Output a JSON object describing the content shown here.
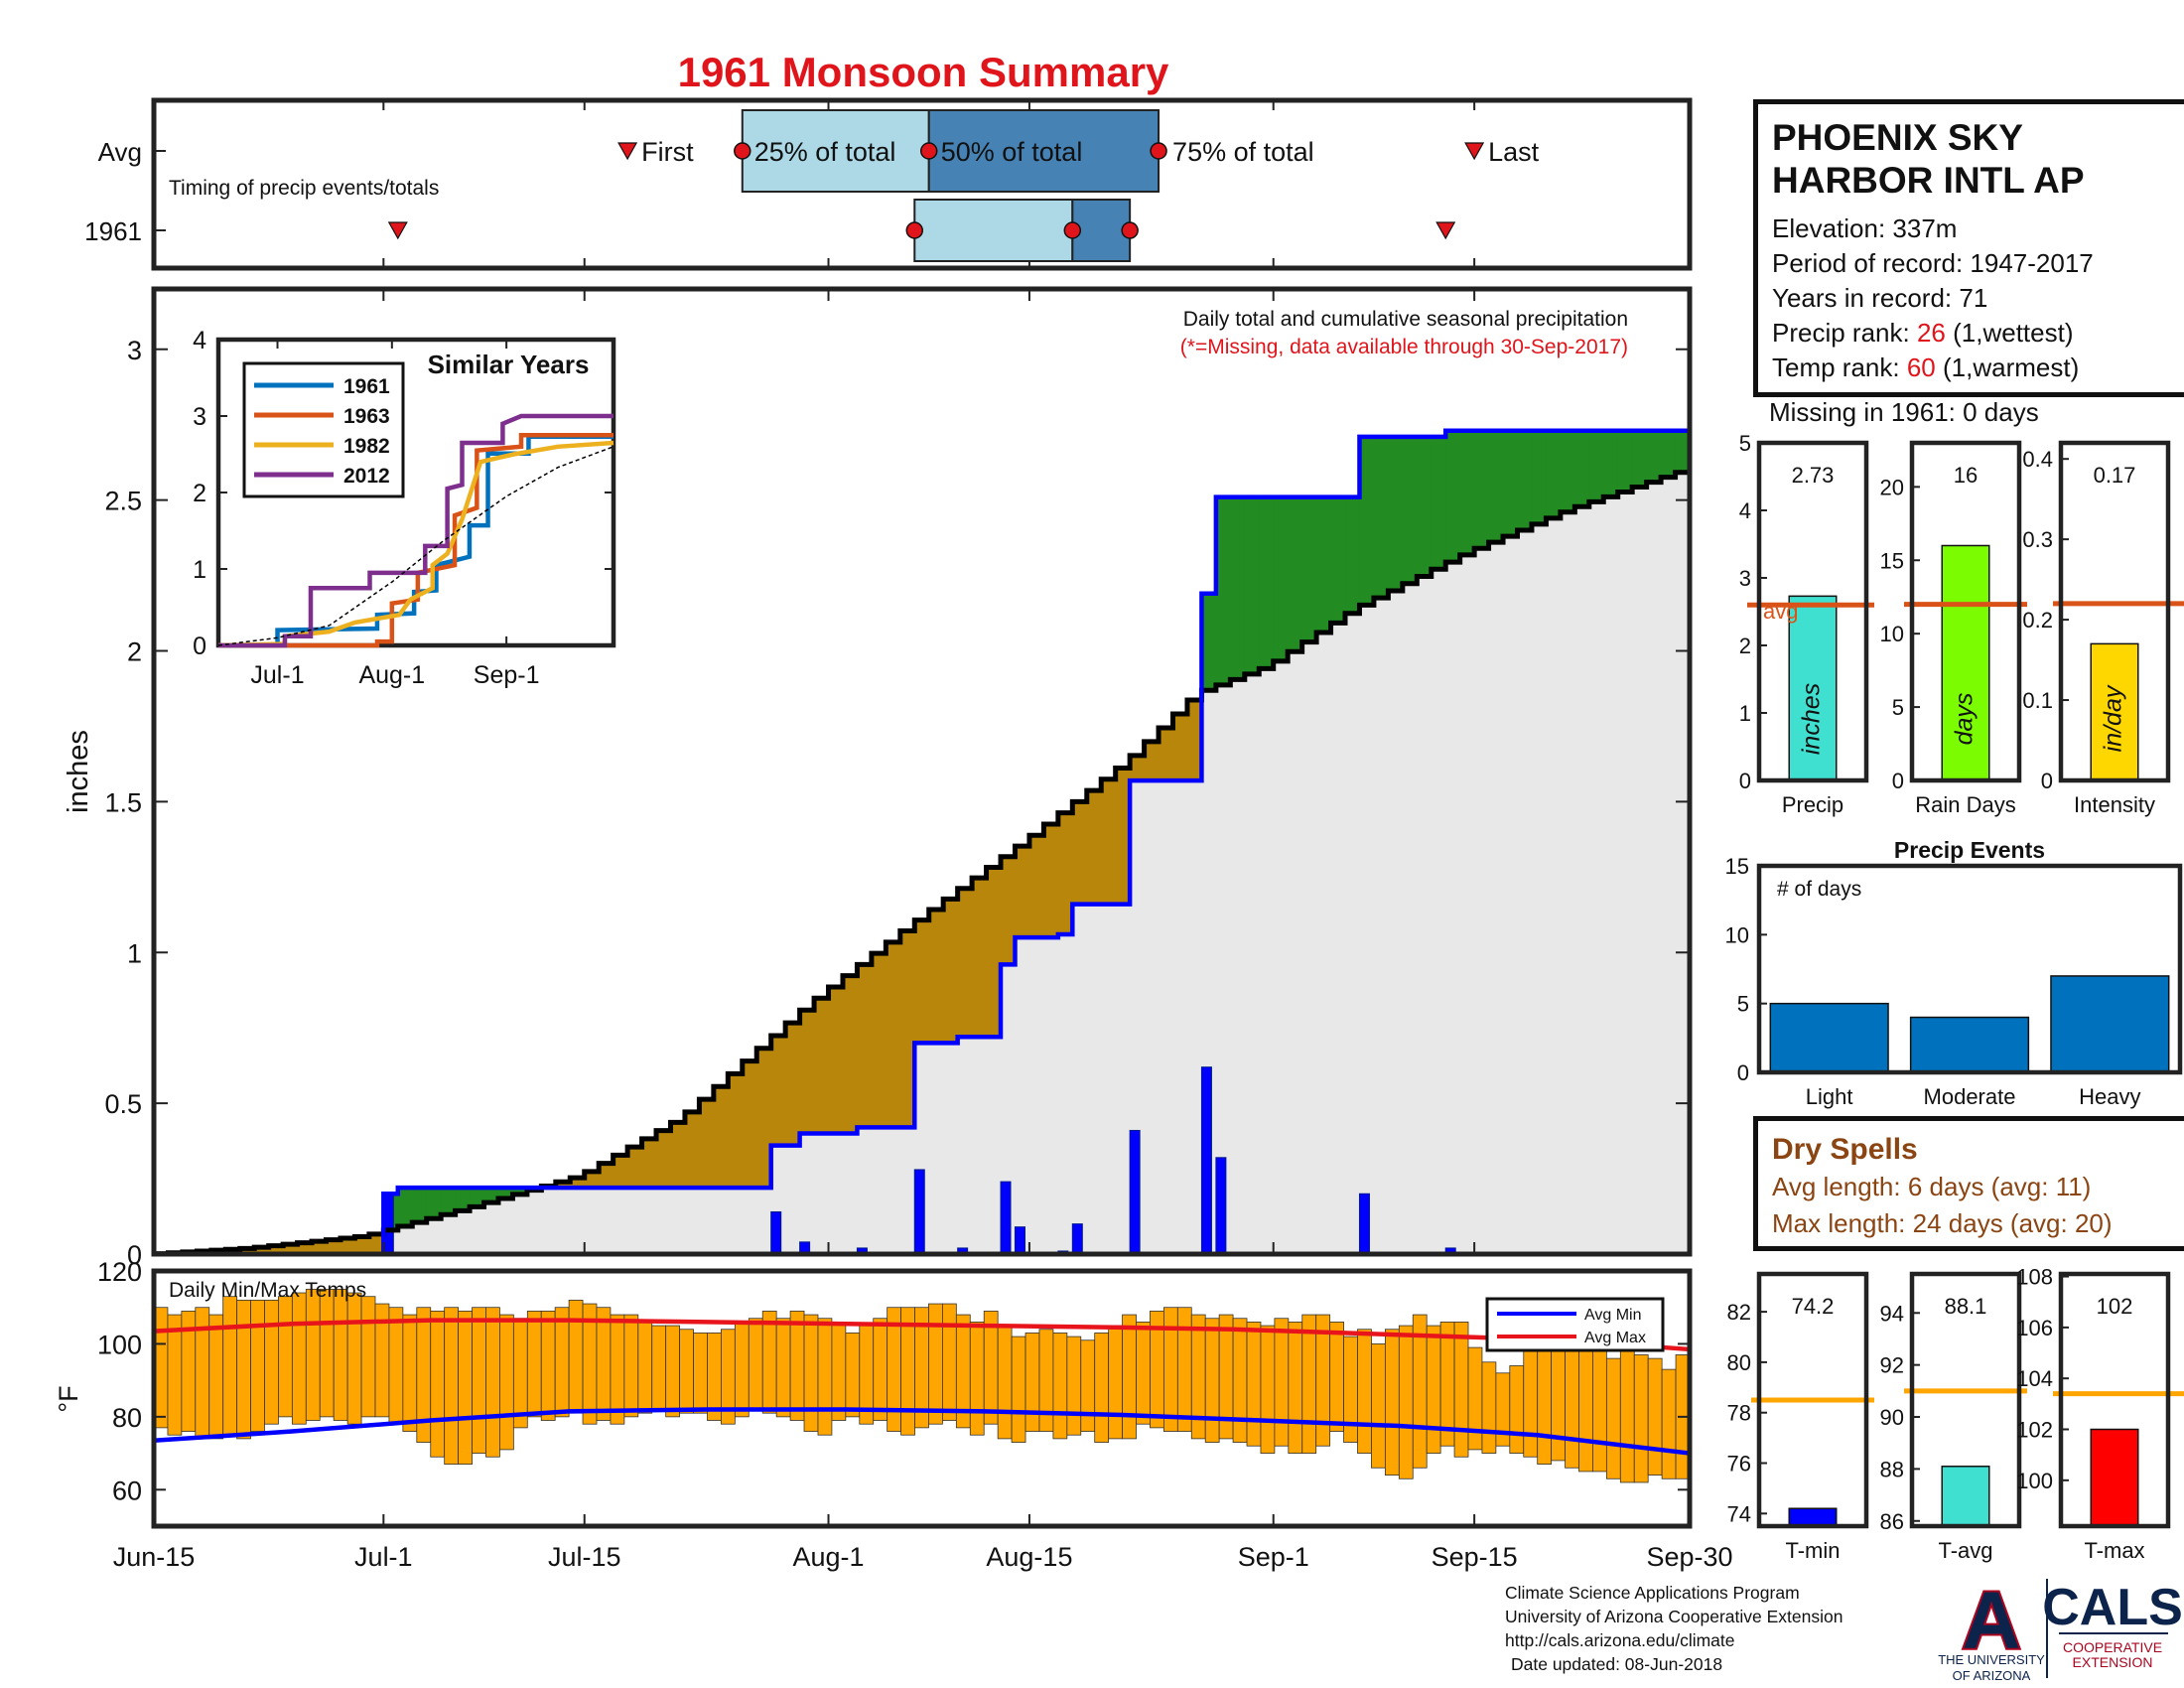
{
  "title": "1961 Monsoon Summary",
  "colors": {
    "title": "#e0151b",
    "cum_obs_outline": "#0000ff",
    "cum_avg_outline": "#000000",
    "above_avg_fill": "#228b22",
    "below_avg_fill": "#b8860b",
    "avg_fill": "#e8e8e8",
    "daily_bar": "#0000ff",
    "temp_bar": "#ffa500",
    "avg_min_line": "#0000ff",
    "avg_max_line": "#e8141b",
    "light_blue": "#add8e6",
    "steel_blue": "#4682b4",
    "avg_line": "#d95319",
    "event_bar": "#0072bd",
    "temp_avg_line": "#ffa500"
  },
  "station": {
    "name_line1": "PHOENIX SKY",
    "name_line2": "HARBOR INTL AP",
    "elevation": "Elevation: 337m",
    "period": "Period of record: 1947-2017",
    "years": "Years in record: 71",
    "precip_rank_label": "Precip rank:",
    "precip_rank_value": "26",
    "precip_rank_note": "(1,wettest)",
    "temp_rank_label": "Temp rank:",
    "temp_rank_value": "60",
    "temp_rank_note": "(1,warmest)",
    "missing": "Missing in 1961: 0 days"
  },
  "dry_spells": {
    "title": "Dry Spells",
    "avg_length": "Avg length: 6 days (avg: 11)",
    "max_length": "Max length: 24 days (avg: 20)"
  },
  "footer": {
    "line1": "Climate Science Applications Program",
    "line2": "University of Arizona Cooperative Extension",
    "line3": "http://cals.arizona.edu/climate",
    "line4": "Date updated: 08-Jun-2018"
  },
  "logos": {
    "ua_letter": "A",
    "ua_line1": "THE UNIVERSITY",
    "ua_line2": "OF ARIZONA",
    "cals": "CALS",
    "cals_line1": "COOPERATIVE",
    "cals_line2": "EXTENSION"
  },
  "chart_data": [
    {
      "id": "timing",
      "type": "bar",
      "title": "Timing of precip events/totals",
      "rows": [
        "Avg",
        "1961"
      ],
      "x_range": [
        "Jun-15",
        "Sep-30"
      ],
      "labels": {
        "first": "First",
        "p25": "25% of total",
        "p50": "50% of total",
        "p75": "75% of total",
        "last": "Last"
      },
      "avg": {
        "first": "Jul-18",
        "p25": "Jul-26",
        "p50": "Aug-8",
        "p75": "Aug-24",
        "last": "Sep-15"
      },
      "year": {
        "first": "Jul-2",
        "p25": "Aug-7",
        "p50": "Aug-18",
        "p75": "Aug-22",
        "last": "Sep-13"
      }
    },
    {
      "id": "cumulative-precip",
      "type": "area",
      "ylabel": "inches",
      "ylim": [
        0,
        3.2
      ],
      "yticks": [
        0,
        0.5,
        1,
        1.5,
        2,
        2.5,
        3
      ],
      "x_ticks": [
        "Jun-15",
        "Jul-1",
        "Jul-15",
        "Aug-1",
        "Aug-15",
        "Sep-1",
        "Sep-15",
        "Sep-30"
      ],
      "annotation1": "Daily total and cumulative seasonal precipitation",
      "annotation2": "(*=Missing, data available through 30-Sep-2017)",
      "daily_precip": [
        {
          "date": "Jul-1",
          "value": 0.2
        },
        {
          "date": "Jul-28",
          "value": 0.14
        },
        {
          "date": "Jul-30",
          "value": 0.04
        },
        {
          "date": "Aug-3",
          "value": 0.02
        },
        {
          "date": "Aug-7",
          "value": 0.28
        },
        {
          "date": "Aug-10",
          "value": 0.02
        },
        {
          "date": "Aug-13",
          "value": 0.24
        },
        {
          "date": "Aug-14",
          "value": 0.09
        },
        {
          "date": "Aug-17",
          "value": 0.01
        },
        {
          "date": "Aug-18",
          "value": 0.1
        },
        {
          "date": "Aug-22",
          "value": 0.41
        },
        {
          "date": "Aug-27",
          "value": 0.62
        },
        {
          "date": "Aug-28",
          "value": 0.32
        },
        {
          "date": "Sep-7",
          "value": 0.2
        },
        {
          "date": "Sep-13",
          "value": 0.02
        }
      ],
      "series": [
        {
          "name": "1961 cumulative",
          "points": [
            [
              "Jun-15",
              0
            ],
            [
              "Jul-1",
              0.2
            ],
            [
              "Jul-2",
              0.22
            ],
            [
              "Jul-28",
              0.22
            ],
            [
              "Jul-28",
              0.36
            ],
            [
              "Jul-30",
              0.4
            ],
            [
              "Aug-3",
              0.42
            ],
            [
              "Aug-7",
              0.42
            ],
            [
              "Aug-7",
              0.7
            ],
            [
              "Aug-10",
              0.72
            ],
            [
              "Aug-13",
              0.72
            ],
            [
              "Aug-13",
              0.96
            ],
            [
              "Aug-14",
              1.05
            ],
            [
              "Aug-17",
              1.06
            ],
            [
              "Aug-18",
              1.16
            ],
            [
              "Aug-22",
              1.16
            ],
            [
              "Aug-22",
              1.57
            ],
            [
              "Aug-27",
              1.57
            ],
            [
              "Aug-27",
              2.19
            ],
            [
              "Aug-28",
              2.51
            ],
            [
              "Sep-7",
              2.51
            ],
            [
              "Sep-7",
              2.71
            ],
            [
              "Sep-13",
              2.73
            ],
            [
              "Sep-30",
              2.73
            ]
          ]
        },
        {
          "name": "Avg cumulative",
          "points": [
            [
              "Jun-15",
              0
            ],
            [
              "Jun-22",
              0.02
            ],
            [
              "Jun-30",
              0.06
            ],
            [
              "Jul-7",
              0.15
            ],
            [
              "Jul-15",
              0.26
            ],
            [
              "Jul-22",
              0.45
            ],
            [
              "Jul-31",
              0.83
            ],
            [
              "Aug-7",
              1.09
            ],
            [
              "Aug-15",
              1.37
            ],
            [
              "Aug-22",
              1.63
            ],
            [
              "Aug-27",
              1.86
            ],
            [
              "Sep-1",
              1.95
            ],
            [
              "Sep-7",
              2.14
            ],
            [
              "Sep-15",
              2.33
            ],
            [
              "Sep-22",
              2.47
            ],
            [
              "Sep-30",
              2.6
            ]
          ]
        }
      ]
    },
    {
      "id": "similar-years",
      "type": "line",
      "title": "Similar Years",
      "ylim": [
        0,
        4
      ],
      "yticks": [
        0,
        1,
        2,
        3,
        4
      ],
      "x_ticks": [
        "Jul-1",
        "Aug-1",
        "Sep-1"
      ],
      "series": [
        {
          "name": "1961",
          "color": "#0072bd",
          "points": [
            [
              "Jun-15",
              0
            ],
            [
              "Jul-1",
              0
            ],
            [
              "Jul-1",
              0.2
            ],
            [
              "Jul-28",
              0.22
            ],
            [
              "Jul-28",
              0.4
            ],
            [
              "Aug-7",
              0.42
            ],
            [
              "Aug-7",
              0.7
            ],
            [
              "Aug-13",
              0.72
            ],
            [
              "Aug-13",
              1.05
            ],
            [
              "Aug-22",
              1.16
            ],
            [
              "Aug-22",
              1.57
            ],
            [
              "Aug-27",
              1.57
            ],
            [
              "Aug-27",
              2.51
            ],
            [
              "Sep-7",
              2.51
            ],
            [
              "Sep-7",
              2.73
            ],
            [
              "Sep-30",
              2.73
            ]
          ]
        },
        {
          "name": "1963",
          "color": "#d95319",
          "points": [
            [
              "Jun-15",
              0
            ],
            [
              "Jul-28",
              0
            ],
            [
              "Jul-28",
              0.05
            ],
            [
              "Aug-1",
              0.05
            ],
            [
              "Aug-1",
              0.55
            ],
            [
              "Aug-8",
              0.6
            ],
            [
              "Aug-8",
              0.95
            ],
            [
              "Aug-18",
              1.05
            ],
            [
              "Aug-18",
              1.7
            ],
            [
              "Aug-24",
              1.8
            ],
            [
              "Aug-24",
              2.55
            ],
            [
              "Sep-5",
              2.6
            ],
            [
              "Sep-5",
              2.75
            ],
            [
              "Sep-30",
              2.75
            ]
          ]
        },
        {
          "name": "1982",
          "color": "#edb120",
          "points": [
            [
              "Jun-15",
              0
            ],
            [
              "Jul-3",
              0.02
            ],
            [
              "Jul-3",
              0.12
            ],
            [
              "Jul-15",
              0.18
            ],
            [
              "Jul-22",
              0.3
            ],
            [
              "Aug-3",
              0.4
            ],
            [
              "Aug-6",
              0.6
            ],
            [
              "Aug-12",
              0.75
            ],
            [
              "Aug-12",
              1.05
            ],
            [
              "Aug-16",
              1.2
            ],
            [
              "Aug-20",
              1.65
            ],
            [
              "Aug-25",
              2.4
            ],
            [
              "Sep-3",
              2.5
            ],
            [
              "Sep-15",
              2.6
            ],
            [
              "Sep-30",
              2.65
            ]
          ]
        },
        {
          "name": "2012",
          "color": "#7e2f8e",
          "points": [
            [
              "Jun-15",
              0
            ],
            [
              "Jul-3",
              0
            ],
            [
              "Jul-3",
              0.12
            ],
            [
              "Jul-10",
              0.12
            ],
            [
              "Jul-10",
              0.75
            ],
            [
              "Jul-26",
              0.75
            ],
            [
              "Jul-26",
              0.95
            ],
            [
              "Aug-10",
              0.95
            ],
            [
              "Aug-10",
              1.3
            ],
            [
              "Aug-16",
              1.3
            ],
            [
              "Aug-16",
              2.05
            ],
            [
              "Aug-20",
              2.1
            ],
            [
              "Aug-20",
              2.65
            ],
            [
              "Aug-31",
              2.65
            ],
            [
              "Aug-31",
              2.9
            ],
            [
              "Sep-5",
              3.0
            ],
            [
              "Sep-30",
              3.0
            ]
          ]
        },
        {
          "name": "",
          "color": "#000000",
          "dashed": true,
          "points": [
            [
              "Jun-15",
              0
            ],
            [
              "Jul-1",
              0.1
            ],
            [
              "Jul-15",
              0.26
            ],
            [
              "Aug-1",
              0.83
            ],
            [
              "Aug-15",
              1.37
            ],
            [
              "Sep-1",
              1.95
            ],
            [
              "Sep-15",
              2.33
            ],
            [
              "Sep-30",
              2.6
            ]
          ]
        }
      ]
    },
    {
      "id": "daily-temps",
      "type": "bar",
      "title": "Daily Min/Max Temps",
      "ylabel": "°F",
      "ylim": [
        50,
        120
      ],
      "yticks": [
        60,
        80,
        100,
        120
      ],
      "legend": [
        "Avg Min",
        "Avg Max"
      ],
      "max_temps": [
        110,
        108,
        109,
        110,
        108,
        113,
        112,
        112,
        112,
        113,
        114,
        115,
        115,
        115,
        114,
        113,
        111,
        110,
        108,
        110,
        109,
        110,
        109,
        110,
        110,
        108,
        107,
        109,
        109,
        110,
        112,
        111,
        110,
        108,
        108,
        106,
        105,
        105,
        104,
        103,
        103,
        104,
        106,
        107,
        109,
        107,
        109,
        108,
        107,
        106,
        103,
        105,
        107,
        110,
        110,
        110,
        111,
        111,
        108,
        106,
        109,
        105,
        102,
        103,
        104,
        103,
        102,
        101,
        103,
        105,
        108,
        106,
        109,
        110,
        110,
        108,
        107,
        108,
        107,
        106,
        105,
        107,
        106,
        108,
        108,
        106,
        102,
        104,
        100,
        104,
        105,
        108,
        105,
        106,
        106,
        99,
        95,
        92,
        94,
        103,
        106,
        102,
        101,
        100,
        99,
        96,
        98,
        97,
        96,
        93,
        97
      ],
      "min_temps": [
        77,
        75,
        76,
        74,
        74,
        75,
        74,
        76,
        78,
        80,
        78,
        79,
        80,
        79,
        78,
        80,
        80,
        78,
        76,
        73,
        69,
        67,
        67,
        70,
        69,
        71,
        77,
        80,
        79,
        80,
        81,
        78,
        79,
        78,
        80,
        81,
        82,
        80,
        81,
        81,
        79,
        78,
        80,
        82,
        81,
        80,
        79,
        76,
        75,
        79,
        80,
        78,
        79,
        76,
        75,
        77,
        78,
        79,
        77,
        75,
        78,
        74,
        73,
        76,
        76,
        74,
        75,
        76,
        73,
        74,
        74,
        78,
        77,
        76,
        76,
        74,
        73,
        74,
        73,
        72,
        70,
        72,
        70,
        70,
        72,
        76,
        73,
        70,
        66,
        64,
        63,
        66,
        70,
        72,
        69,
        71,
        70,
        72,
        70,
        69,
        67,
        68,
        66,
        65,
        65,
        63,
        62,
        62,
        64,
        63,
        63
      ],
      "avg_max": [
        [
          0,
          103.5
        ],
        [
          10,
          105.5
        ],
        [
          20,
          106.5
        ],
        [
          30,
          106.5
        ],
        [
          40,
          106
        ],
        [
          50,
          105.5
        ],
        [
          60,
          105
        ],
        [
          70,
          104.5
        ],
        [
          78,
          104
        ],
        [
          86,
          103
        ],
        [
          94,
          102
        ],
        [
          102,
          101
        ],
        [
          111,
          98.5
        ]
      ],
      "avg_min": [
        [
          0,
          73.5
        ],
        [
          10,
          76
        ],
        [
          20,
          79
        ],
        [
          30,
          81.5
        ],
        [
          40,
          82
        ],
        [
          50,
          82
        ],
        [
          60,
          81.5
        ],
        [
          70,
          80.5
        ],
        [
          80,
          79
        ],
        [
          90,
          77.5
        ],
        [
          100,
          75
        ],
        [
          111,
          70
        ]
      ]
    },
    {
      "id": "precip-total",
      "type": "bar",
      "label": "Precip",
      "unit_label": "inches",
      "value": 2.73,
      "value_label": "2.73",
      "avg": 2.6,
      "avg_label": "avg",
      "ylim": [
        0,
        5
      ],
      "yticks": [
        0,
        1,
        2,
        3,
        4,
        5
      ],
      "color": "#40e0d0"
    },
    {
      "id": "rain-days",
      "type": "bar",
      "label": "Rain Days",
      "unit_label": "days",
      "value": 16,
      "value_label": "16",
      "avg": 12,
      "ylim": [
        0,
        23
      ],
      "yticks": [
        0,
        5,
        10,
        15,
        20
      ],
      "color": "#7cfc00"
    },
    {
      "id": "intensity",
      "type": "bar",
      "label": "Intensity",
      "unit_label": "in/day",
      "value": 0.17,
      "value_label": "0.17",
      "avg": 0.22,
      "ylim": [
        0,
        0.42
      ],
      "yticks": [
        0,
        0.1,
        0.2,
        0.3,
        0.4
      ],
      "color": "#ffd700"
    },
    {
      "id": "precip-events",
      "type": "bar",
      "title": "Precip Events",
      "ylabel": "# of days",
      "categories": [
        "Light",
        "Moderate",
        "Heavy"
      ],
      "values": [
        5,
        4,
        7
      ],
      "ylim": [
        0,
        15
      ],
      "yticks": [
        0,
        5,
        10,
        15
      ],
      "color": "#0072bd"
    },
    {
      "id": "t-min",
      "type": "bar",
      "label": "T-min",
      "value": 74.2,
      "value_label": "74.2",
      "avg": 78.5,
      "ylim": [
        73.5,
        83.5
      ],
      "yticks": [
        74,
        76,
        78,
        80,
        82
      ],
      "color": "#0000ff"
    },
    {
      "id": "t-avg",
      "type": "bar",
      "label": "T-avg",
      "value": 88.1,
      "value_label": "88.1",
      "avg": 91,
      "ylim": [
        85.8,
        95.5
      ],
      "yticks": [
        86,
        88,
        90,
        92,
        94
      ],
      "color": "#40e0d0"
    },
    {
      "id": "t-max",
      "type": "bar",
      "label": "T-max",
      "value": 102,
      "value_label": "102",
      "avg": 103.4,
      "ylim": [
        98.2,
        108.1
      ],
      "yticks": [
        100,
        102,
        104,
        106,
        108
      ],
      "color": "#ff0000"
    }
  ]
}
